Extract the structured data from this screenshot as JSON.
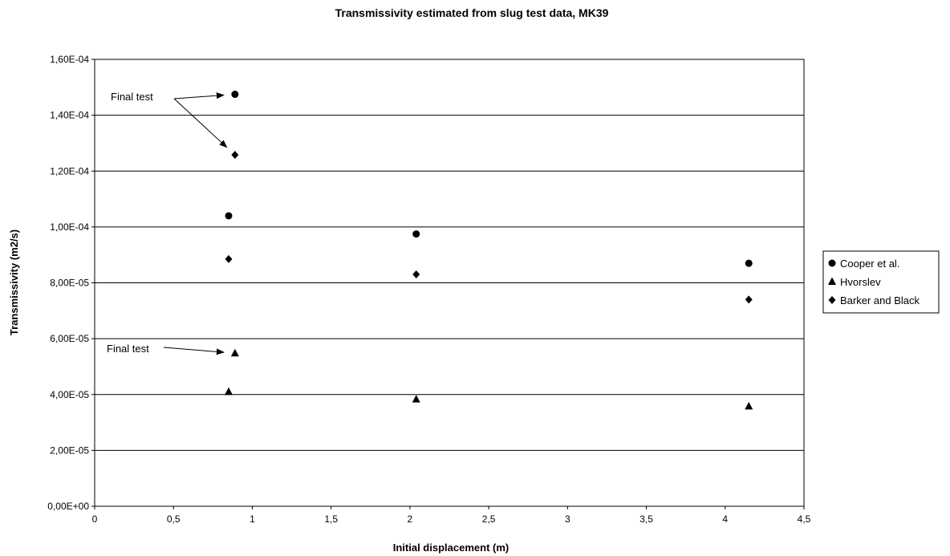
{
  "chart_data": {
    "type": "scatter",
    "title": "Transmissivity estimated from slug test data, MK39",
    "xlabel": "Initial displacement (m)",
    "ylabel": "Transmissivity (m2/s)",
    "xlim": [
      0,
      4.5
    ],
    "ylim": [
      0,
      0.00016
    ],
    "x_ticks": [
      0,
      0.5,
      1,
      1.5,
      2,
      2.5,
      3,
      3.5,
      4,
      4.5
    ],
    "x_tick_labels": [
      "0",
      "0,5",
      "1",
      "1,5",
      "2",
      "2,5",
      "3",
      "3,5",
      "4",
      "4,5"
    ],
    "y_ticks": [
      0,
      2e-05,
      4e-05,
      6e-05,
      8e-05,
      0.0001,
      0.00012,
      0.00014,
      0.00016
    ],
    "y_tick_labels": [
      "0,00E+00",
      "2,00E-05",
      "4,00E-05",
      "6,00E-05",
      "8,00E-05",
      "1,00E-04",
      "1,20E-04",
      "1,40E-04",
      "1,60E-04"
    ],
    "grid": "horizontal",
    "legend_position": "right",
    "series": [
      {
        "name": "Cooper et al.",
        "marker": "circle",
        "points": [
          [
            0.85,
            0.000104
          ],
          [
            0.89,
            0.0001475
          ],
          [
            2.04,
            9.75e-05
          ],
          [
            4.15,
            8.7e-05
          ]
        ]
      },
      {
        "name": "Hvorslev",
        "marker": "triangle",
        "points": [
          [
            0.85,
            4.1e-05
          ],
          [
            0.89,
            5.48e-05
          ],
          [
            2.04,
            3.83e-05
          ],
          [
            4.15,
            3.58e-05
          ]
        ]
      },
      {
        "name": "Barker and Black",
        "marker": "diamond",
        "points": [
          [
            0.85,
            8.85e-05
          ],
          [
            0.89,
            0.0001258
          ],
          [
            2.04,
            8.3e-05
          ],
          [
            4.15,
            7.4e-05
          ]
        ]
      }
    ],
    "annotations": [
      {
        "text": "Final test",
        "point_to": [
          [
            0.89,
            0.0001475
          ],
          [
            0.89,
            0.0001258
          ]
        ]
      },
      {
        "text": "Final test",
        "point_to": [
          [
            0.89,
            5.48e-05
          ]
        ]
      }
    ]
  }
}
